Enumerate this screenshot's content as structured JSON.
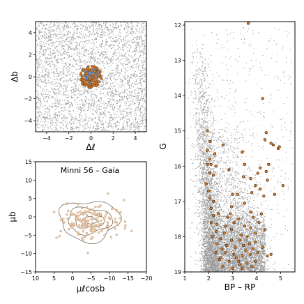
{
  "chart_data": [
    {
      "type": "scatter",
      "id": "sky",
      "xlabel": "Δℓ",
      "ylabel": "Δb",
      "xlim": [
        -5,
        5
      ],
      "ylim": [
        -5,
        5
      ],
      "xticks": [
        -4,
        -2,
        0,
        2,
        4
      ],
      "yticks": [
        -4,
        -2,
        0,
        2,
        4
      ],
      "field_color": "#999999",
      "member_color": "#e07b20",
      "field_note": "uniform field stars over the full square",
      "member_radius_deg": 1.0,
      "member_center": [
        0,
        0
      ]
    },
    {
      "type": "scatter",
      "id": "proper-motion",
      "title": "Minni 56  –  Gaia",
      "xlabel": "μℓcosb",
      "ylabel": "μb",
      "xlim": [
        10,
        -20
      ],
      "ylim": [
        -15,
        15
      ],
      "xticks": [
        10,
        5,
        0,
        -5,
        -10,
        -15,
        -20
      ],
      "yticks": [
        -15,
        -10,
        -5,
        0,
        5,
        10,
        15
      ],
      "point_fill": "#f0d8bf",
      "point_edge": "#c08a5a",
      "contour_color": "#7a6a5e",
      "center": [
        -4.5,
        -1.0
      ],
      "contour_levels": [
        {
          "rx": 2.0,
          "ry": 1.0
        },
        {
          "rx": 4.0,
          "ry": 2.0
        },
        {
          "rx": 6.0,
          "ry": 3.5
        },
        {
          "rx": 8.0,
          "ry": 5.5
        }
      ]
    },
    {
      "type": "scatter",
      "id": "cmd",
      "xlabel": "BP – RP",
      "ylabel": "G",
      "xlim": [
        1.0,
        5.6
      ],
      "ylim": [
        19.0,
        11.9
      ],
      "xticks": [
        1,
        2,
        3,
        4,
        5
      ],
      "yticks": [
        12,
        13,
        14,
        15,
        16,
        17,
        18,
        19
      ],
      "field_color": "#999999",
      "member_fill": "#e07b20",
      "member_edge": "#000000",
      "members": [
        [
          3.65,
          11.95
        ],
        [
          4.25,
          14.08
        ],
        [
          1.95,
          15.0
        ],
        [
          2.05,
          15.3
        ],
        [
          2.6,
          15.4
        ],
        [
          4.4,
          15.05
        ],
        [
          4.35,
          15.25
        ],
        [
          4.6,
          15.35
        ],
        [
          4.7,
          15.4
        ],
        [
          1.95,
          15.55
        ],
        [
          2.25,
          15.65
        ],
        [
          2.05,
          15.8
        ],
        [
          4.5,
          15.95
        ],
        [
          4.9,
          15.5
        ],
        [
          4.95,
          15.45
        ],
        [
          3.4,
          15.6
        ],
        [
          1.95,
          15.95
        ],
        [
          2.1,
          15.95
        ],
        [
          2.3,
          16.0
        ],
        [
          3.5,
          15.95
        ],
        [
          4.15,
          16.05
        ],
        [
          4.4,
          16.15
        ],
        [
          2.05,
          16.2
        ],
        [
          2.2,
          16.25
        ],
        [
          2.85,
          16.1
        ],
        [
          3.45,
          16.3
        ],
        [
          3.75,
          16.35
        ],
        [
          4.05,
          16.2
        ],
        [
          4.45,
          16.4
        ],
        [
          1.9,
          16.5
        ],
        [
          3.95,
          16.55
        ],
        [
          2.0,
          16.7
        ],
        [
          4.15,
          16.65
        ],
        [
          5.1,
          16.55
        ],
        [
          2.05,
          16.9
        ],
        [
          3.0,
          16.8
        ],
        [
          3.2,
          16.8
        ],
        [
          3.8,
          16.75
        ],
        [
          2.2,
          17.0
        ],
        [
          3.5,
          17.05
        ],
        [
          4.3,
          16.85
        ],
        [
          4.75,
          16.8
        ],
        [
          2.1,
          17.2
        ],
        [
          2.95,
          17.15
        ],
        [
          3.75,
          17.3
        ],
        [
          2.2,
          17.4
        ],
        [
          2.4,
          17.35
        ],
        [
          2.8,
          17.45
        ],
        [
          3.25,
          17.5
        ],
        [
          3.85,
          17.45
        ],
        [
          4.2,
          17.35
        ],
        [
          2.1,
          17.6
        ],
        [
          2.35,
          17.65
        ],
        [
          3.05,
          17.6
        ],
        [
          3.5,
          17.7
        ],
        [
          3.75,
          17.75
        ],
        [
          4.1,
          17.6
        ],
        [
          2.3,
          17.85
        ],
        [
          2.65,
          17.9
        ],
        [
          2.95,
          17.8
        ],
        [
          3.35,
          17.95
        ],
        [
          3.95,
          17.9
        ],
        [
          4.35,
          17.8
        ],
        [
          2.15,
          18.0
        ],
        [
          2.5,
          18.05
        ],
        [
          2.95,
          18.1
        ],
        [
          3.3,
          18.1
        ],
        [
          3.6,
          18.0
        ],
        [
          3.95,
          18.15
        ],
        [
          2.35,
          18.2
        ],
        [
          2.75,
          18.25
        ],
        [
          3.1,
          18.3
        ],
        [
          3.45,
          18.25
        ],
        [
          3.85,
          18.35
        ],
        [
          4.25,
          18.3
        ],
        [
          2.3,
          18.45
        ],
        [
          2.7,
          18.45
        ],
        [
          3.05,
          18.5
        ],
        [
          3.4,
          18.55
        ],
        [
          3.75,
          18.5
        ],
        [
          4.05,
          18.45
        ],
        [
          4.45,
          18.55
        ],
        [
          2.45,
          18.65
        ],
        [
          2.85,
          18.7
        ],
        [
          3.25,
          18.7
        ],
        [
          3.6,
          18.75
        ],
        [
          3.95,
          18.7
        ],
        [
          2.6,
          18.85
        ],
        [
          3.0,
          18.9
        ],
        [
          3.4,
          18.9
        ],
        [
          3.8,
          18.85
        ],
        [
          2.5,
          18.6
        ],
        [
          3.15,
          18.6
        ],
        [
          2.7,
          17.7
        ],
        [
          3.7,
          18.2
        ],
        [
          2.55,
          18.35
        ],
        [
          2.9,
          17.35
        ],
        [
          3.3,
          18.8
        ],
        [
          4.6,
          18.5
        ],
        [
          3.55,
          18.4
        ]
      ]
    }
  ]
}
